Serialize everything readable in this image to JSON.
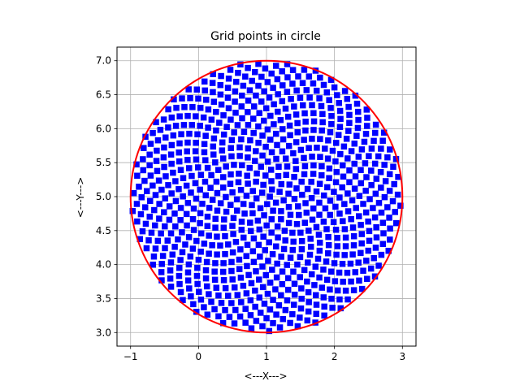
{
  "chart_data": {
    "type": "scatter",
    "title": "Grid points in circle",
    "xlabel": "<---X--->",
    "ylabel": "<---Y--->",
    "xlim": [
      -1.2,
      3.2
    ],
    "ylim": [
      2.8,
      7.2
    ],
    "xticks": [
      -1,
      0,
      1,
      2,
      3
    ],
    "yticks": [
      3.0,
      3.5,
      4.0,
      4.5,
      5.0,
      5.5,
      6.0,
      6.5,
      7.0
    ],
    "grid": true,
    "circle": {
      "center": [
        1,
        5
      ],
      "radius": 2,
      "color": "#ff0000"
    },
    "points": {
      "generator": "golden-angle spiral",
      "count": 800,
      "marker": "square",
      "color": "#0000ff"
    }
  }
}
